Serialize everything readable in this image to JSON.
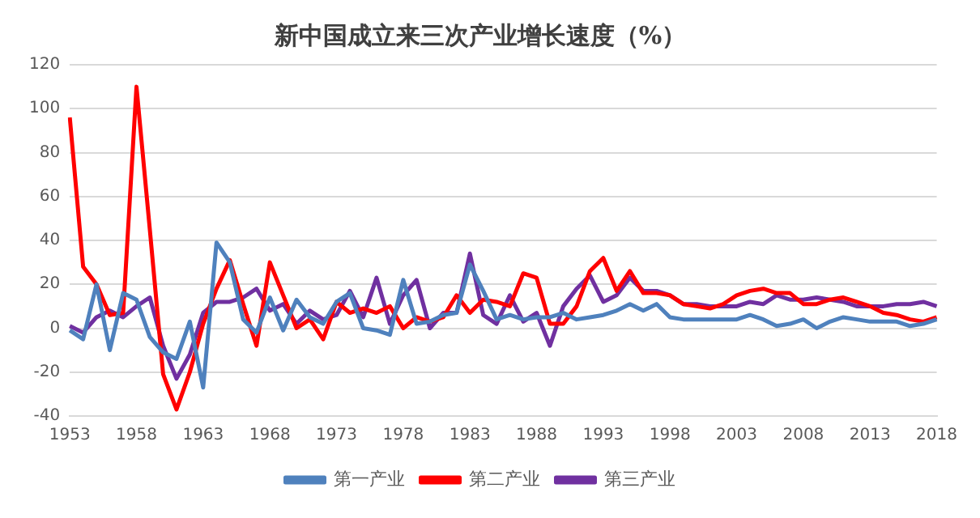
{
  "chart_data": {
    "type": "line",
    "title": "新中国成立来三次产业增长速度（%）",
    "categories": [
      "1953",
      null,
      null,
      null,
      null,
      "1958",
      null,
      null,
      null,
      null,
      "1963",
      null,
      null,
      null,
      null,
      "1968",
      null,
      null,
      null,
      null,
      "1973",
      null,
      null,
      null,
      null,
      "1978",
      null,
      null,
      null,
      null,
      "1983",
      null,
      null,
      null,
      null,
      "1988",
      null,
      null,
      null,
      null,
      "1993",
      null,
      null,
      null,
      null,
      "1998",
      null,
      null,
      null,
      null,
      "2003",
      null,
      null,
      null,
      null,
      "2008",
      null,
      null,
      null,
      null,
      "2013",
      null,
      null,
      null,
      null,
      "2018"
    ],
    "series": [
      {
        "name": "第一产业",
        "color": "#4f81bd",
        "values": [
          -1,
          -5,
          20,
          -10,
          16,
          13,
          -4,
          -11,
          -14,
          3,
          -27,
          39,
          30,
          4,
          -2,
          14,
          -1,
          13,
          5,
          2,
          12,
          16,
          0,
          -1,
          -3,
          22,
          2,
          3,
          6,
          7,
          29,
          17,
          4,
          6,
          4,
          5,
          5,
          7,
          4,
          5,
          6,
          8,
          11,
          8,
          11,
          5,
          4,
          4,
          4,
          4,
          4,
          6,
          4,
          1,
          2,
          4,
          0,
          3,
          5,
          4,
          3,
          3,
          3,
          1,
          2,
          4
        ]
      },
      {
        "name": "第二产业",
        "color": "#ff0000",
        "values": [
          96,
          28,
          20,
          6,
          7,
          110,
          45,
          -21,
          -37,
          -20,
          2,
          18,
          31,
          11,
          -8,
          30,
          15,
          0,
          4,
          -5,
          12,
          7,
          9,
          7,
          10,
          0,
          5,
          3,
          5,
          15,
          7,
          13,
          12,
          10,
          25,
          23,
          2,
          2,
          10,
          26,
          32,
          17,
          26,
          16,
          16,
          15,
          11,
          10,
          9,
          11,
          15,
          17,
          18,
          16,
          16,
          11,
          11,
          13,
          14,
          12,
          10,
          7,
          6,
          4,
          3,
          5
        ]
      },
      {
        "name": "第三产业",
        "color": "#7030a0",
        "values": [
          1,
          -2,
          5,
          8,
          5,
          10,
          14,
          -8,
          -23,
          -12,
          7,
          12,
          12,
          14,
          18,
          8,
          11,
          2,
          8,
          4,
          6,
          17,
          5,
          23,
          2,
          15,
          22,
          0,
          7,
          7,
          34,
          6,
          2,
          15,
          3,
          7,
          -8,
          10,
          18,
          24,
          12,
          15,
          23,
          17,
          17,
          15,
          11,
          11,
          10,
          10,
          10,
          12,
          11,
          15,
          13,
          13,
          14,
          13,
          12,
          10,
          10,
          10,
          11,
          11,
          12,
          10
        ]
      }
    ],
    "ylim": [
      -40,
      120
    ],
    "yticks": [
      -40,
      -20,
      0,
      20,
      40,
      60,
      80,
      100,
      120
    ],
    "grid": "y",
    "legend": "bottom",
    "marker": "none",
    "line_style": "solid"
  }
}
